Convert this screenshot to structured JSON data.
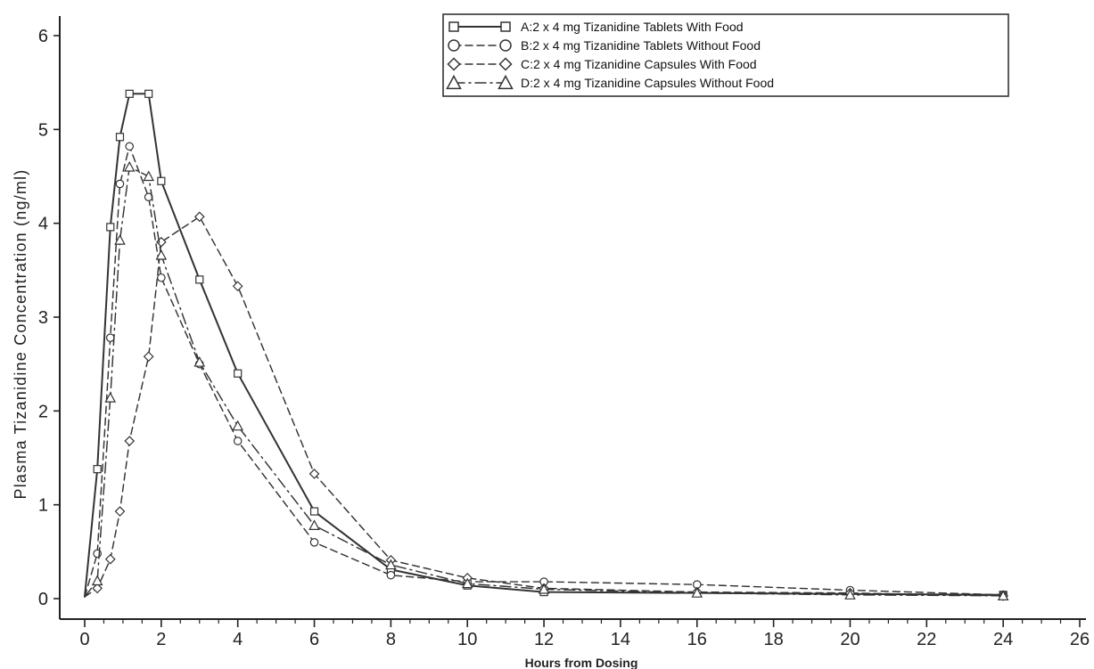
{
  "chart_data": {
    "type": "line",
    "xlabel": "Hours from Dosing",
    "ylabel": "Plasma Tizanidine Concentration (ng/ml)",
    "xlim": [
      0,
      26
    ],
    "ylim": [
      0,
      6
    ],
    "x_ticks": [
      "0",
      "2",
      "4",
      "6",
      "8",
      "10",
      "12",
      "14",
      "16",
      "18",
      "20",
      "22",
      "24",
      "26"
    ],
    "y_ticks": [
      "0",
      "1",
      "2",
      "3",
      "4",
      "5",
      "6"
    ],
    "legend_position": "top-right",
    "grid": false,
    "series": [
      {
        "name": "A:2 x 4 mg Tizanidine Tablets With Food",
        "marker": "square",
        "line_style": "solid",
        "color": "#333333",
        "x": [
          0,
          0.33,
          0.67,
          0.92,
          1.17,
          1.67,
          2,
          3,
          4,
          6,
          8,
          10,
          12,
          24
        ],
        "y": [
          0.02,
          1.38,
          3.96,
          4.92,
          5.38,
          5.38,
          4.45,
          3.4,
          2.4,
          0.93,
          0.31,
          0.14,
          0.07,
          0.04
        ]
      },
      {
        "name": "B:2 x 4 mg Tizanidine Tablets Without Food",
        "marker": "circle",
        "line_style": "dashed",
        "color": "#333333",
        "x": [
          0,
          0.33,
          0.67,
          0.92,
          1.17,
          1.67,
          2,
          3,
          4,
          6,
          8,
          10,
          12,
          16,
          20,
          24
        ],
        "y": [
          0.02,
          0.48,
          2.78,
          4.42,
          4.82,
          4.28,
          3.42,
          2.5,
          1.68,
          0.6,
          0.25,
          0.18,
          0.18,
          0.15,
          0.09,
          0.04
        ]
      },
      {
        "name": "C:2 x 4 mg Tizanidine Capsules With Food",
        "marker": "diamond",
        "line_style": "dashed",
        "color": "#333333",
        "x": [
          0,
          0.33,
          0.67,
          0.92,
          1.17,
          1.67,
          2,
          3,
          4,
          6,
          8,
          10,
          12,
          16,
          20,
          24
        ],
        "y": [
          0.02,
          0.11,
          0.42,
          0.93,
          1.68,
          2.58,
          3.8,
          4.07,
          3.33,
          1.33,
          0.41,
          0.22,
          0.11,
          0.07,
          0.06,
          0.03
        ]
      },
      {
        "name": "D:2 x 4 mg Tizanidine Capsules Without Food",
        "marker": "triangle",
        "line_style": "dash-dot",
        "color": "#333333",
        "x": [
          0,
          0.33,
          0.67,
          0.92,
          1.17,
          1.67,
          2,
          3,
          4,
          6,
          8,
          10,
          12,
          16,
          20,
          24
        ],
        "y": [
          0.02,
          0.19,
          2.14,
          3.82,
          4.6,
          4.5,
          3.66,
          2.52,
          1.84,
          0.78,
          0.36,
          0.16,
          0.1,
          0.06,
          0.04,
          0.03
        ]
      }
    ]
  }
}
